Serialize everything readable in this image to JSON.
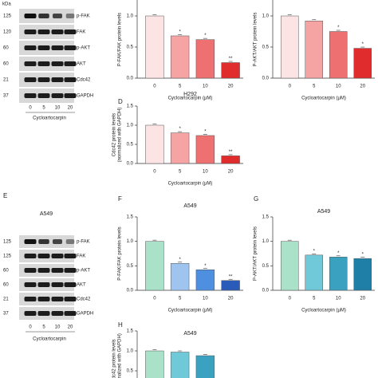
{
  "blots": [
    {
      "header": "kDa",
      "kda": [
        "125",
        "120",
        "60",
        "60",
        "21",
        "37"
      ],
      "proteins": [
        "p-FAK",
        "FAK",
        "p-AKT",
        "AKT",
        "Cdc42",
        "GAPDH"
      ],
      "doses": [
        "0",
        "5",
        "10",
        "20"
      ],
      "xlabel": "Cycloartocarpin"
    },
    {
      "letter": "E",
      "title": "A549",
      "kda": [
        "125",
        "125",
        "60",
        "60",
        "21",
        "37"
      ],
      "proteins": [
        "p-FAK",
        "FAK",
        "p-AKT",
        "AKT",
        "Cdc42",
        "GAPDH"
      ],
      "doses": [
        "0",
        "5",
        "10",
        "20"
      ],
      "xlabel": "Cycloartocarpin"
    }
  ],
  "chart_data": [
    {
      "type": "bar",
      "ylabel": [
        "P-FAK/FAK protein levels"
      ],
      "xlabel": "Cycloartocarpin (μM)",
      "categories": [
        "0",
        "5",
        "10",
        "20"
      ],
      "values": [
        1.0,
        0.68,
        0.62,
        0.25
      ],
      "significance": [
        null,
        "*",
        "*",
        "**"
      ],
      "colors": [
        "#fde4e4",
        "#f5a3a3",
        "#ee7070",
        "#e02c2c"
      ],
      "ylim": [
        0,
        1.5
      ],
      "yticks": [
        {
          "value": 0,
          "label": "0.0"
        },
        0.5,
        {
          "value": 1,
          "label": "1.0"
        }
      ]
    },
    {
      "type": "bar",
      "ylabel": [
        "P-AKT/AKT protein levels"
      ],
      "xlabel": "Cycloartocarpin (μM)",
      "categories": [
        "0",
        "5",
        "10",
        "20"
      ],
      "values": [
        1.0,
        0.92,
        0.75,
        0.48
      ],
      "significance": [
        null,
        null,
        "*",
        "*"
      ],
      "colors": [
        "#fde4e4",
        "#f5a3a3",
        "#ee7070",
        "#e02c2c"
      ],
      "ylim": [
        0,
        1.5
      ],
      "yticks": [
        {
          "value": 0,
          "label": "0.0"
        },
        0.5,
        {
          "value": 1,
          "label": "1.0"
        }
      ]
    },
    {
      "type": "bar",
      "letter": "D",
      "title": "H292",
      "ylabel": [
        "Cdc42 protein levels",
        "(normalized with GAPDH)"
      ],
      "xlabel": "Cycloartocarpin (μM)",
      "categories": [
        "0",
        "5",
        "10",
        "20"
      ],
      "values": [
        1.0,
        0.8,
        0.73,
        0.2
      ],
      "significance": [
        null,
        "*",
        "*",
        "**"
      ],
      "colors": [
        "#fde4e4",
        "#f5a3a3",
        "#ee7070",
        "#e02c2c"
      ],
      "ylim": [
        0,
        1.5
      ],
      "yticks": [
        {
          "value": 0,
          "label": "0.0"
        },
        0.5,
        {
          "value": 1,
          "label": "1.0"
        },
        1.5
      ]
    },
    {
      "type": "bar",
      "letter": "F",
      "title": "A549",
      "ylabel": [
        "P-FAK/FAK protein levels"
      ],
      "xlabel": "Cycloartocarpin (μM)",
      "categories": [
        "0",
        "5",
        "10",
        "20"
      ],
      "values": [
        1.0,
        0.55,
        0.42,
        0.2
      ],
      "significance": [
        null,
        "*",
        "*",
        "**"
      ],
      "colors": [
        "#a9e2c9",
        "#9fc4ef",
        "#4f8fe0",
        "#2a5bb8"
      ],
      "ylim": [
        0,
        1.5
      ],
      "yticks": [
        {
          "value": 0,
          "label": "0.0"
        },
        0.5,
        {
          "value": 1,
          "label": "1.0"
        },
        1.5
      ]
    },
    {
      "type": "bar",
      "letter": "G",
      "title": "A549",
      "ylabel": [
        "P-AKT/AKT protein levels"
      ],
      "xlabel": "Cycloartocarpin (μM)",
      "categories": [
        "0",
        "5",
        "10",
        "20"
      ],
      "values": [
        1.0,
        0.72,
        0.68,
        0.65
      ],
      "significance": [
        null,
        "*",
        "*",
        "*"
      ],
      "colors": [
        "#a9e2c9",
        "#6fc9d9",
        "#3ba1c1",
        "#1f7fa6"
      ],
      "ylim": [
        0,
        1.5
      ],
      "yticks": [
        {
          "value": 0,
          "label": "0.0"
        },
        0.5,
        {
          "value": 1,
          "label": "1.0"
        },
        1.5
      ]
    },
    {
      "type": "bar",
      "letter": "H",
      "title": "A549",
      "ylabel": [
        "Cdc42 protein levels",
        "(normalized with GAPDH)"
      ],
      "values": [
        1.0,
        0.97,
        0.88
      ],
      "colors": [
        "#a9e2c9",
        "#6fc9d9",
        "#3ba1c1"
      ],
      "ylim": [
        0,
        1.5
      ],
      "yticks": [
        0.5,
        {
          "value": 1,
          "label": "1.0"
        },
        1.5
      ]
    }
  ]
}
